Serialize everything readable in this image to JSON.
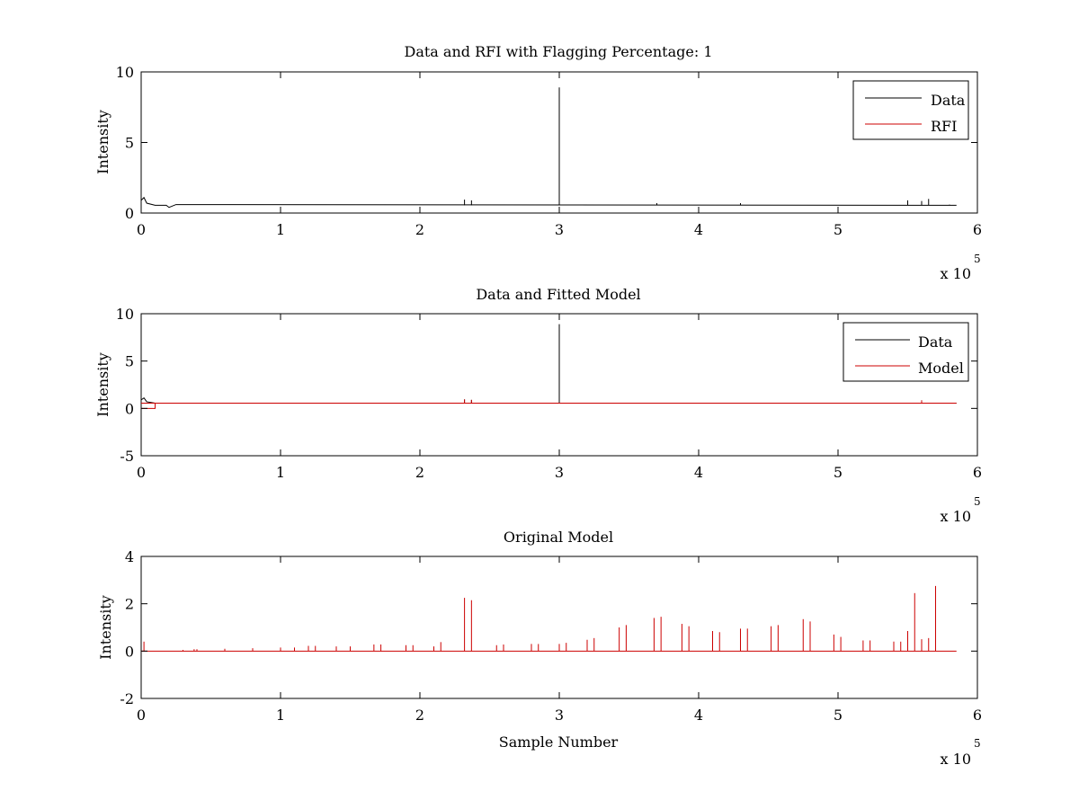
{
  "chart_data": [
    {
      "type": "line",
      "title": "Data and RFI with Flagging Percentage: 1",
      "xlabel": "",
      "ylabel": "Intensity",
      "xlim": [
        0,
        6
      ],
      "ylim": [
        0,
        10
      ],
      "xticks": [
        "0",
        "1",
        "2",
        "3",
        "4",
        "5",
        "6"
      ],
      "yticks": [
        "0",
        "5",
        "10"
      ],
      "x_multiplier_base": "x 10",
      "x_multiplier_exp": "5",
      "legend_position": "top-right",
      "baseline": 0.55,
      "series": [
        {
          "name": "Data",
          "color": "#000000",
          "values": [
            [
              0,
              0.9
            ],
            [
              0.02,
              1.1
            ],
            [
              0.04,
              0.7
            ],
            [
              0.1,
              0.55
            ],
            [
              0.2,
              0.4
            ],
            [
              0.25,
              0.6
            ],
            [
              2.32,
              0.95
            ],
            [
              2.37,
              0.9
            ],
            [
              3.0,
              8.9
            ],
            [
              3.7,
              0.7
            ],
            [
              4.3,
              0.7
            ],
            [
              5.5,
              0.9
            ],
            [
              5.6,
              0.85
            ],
            [
              5.65,
              1.0
            ],
            [
              5.8,
              0.6
            ]
          ]
        },
        {
          "name": "RFI",
          "color": "#cc0000",
          "values": []
        }
      ]
    },
    {
      "type": "line",
      "title": "Data and Fitted Model",
      "xlabel": "",
      "ylabel": "Intensity",
      "xlim": [
        0,
        6
      ],
      "ylim": [
        -5,
        10
      ],
      "xticks": [
        "0",
        "1",
        "2",
        "3",
        "4",
        "5",
        "6"
      ],
      "yticks": [
        "-5",
        "0",
        "5",
        "10"
      ],
      "x_multiplier_base": "x 10",
      "x_multiplier_exp": "5",
      "legend_position": "top-right",
      "baseline": 0.55,
      "series": [
        {
          "name": "Data",
          "color": "#000000",
          "values": [
            [
              0,
              0.9
            ],
            [
              0.02,
              1.1
            ],
            [
              0.04,
              0.7
            ],
            [
              0.1,
              0.55
            ],
            [
              0.25,
              0.6
            ],
            [
              2.32,
              0.95
            ],
            [
              2.37,
              0.9
            ],
            [
              3.0,
              8.9
            ],
            [
              5.6,
              0.85
            ],
            [
              5.8,
              0.6
            ]
          ]
        },
        {
          "name": "Model",
          "color": "#cc0000",
          "values": [
            [
              0,
              0.0
            ],
            [
              0.1,
              0.0
            ],
            [
              0.1,
              0.55
            ],
            [
              2.32,
              0.95
            ],
            [
              2.37,
              0.9
            ],
            [
              5.6,
              0.85
            ],
            [
              5.8,
              0.55
            ]
          ]
        }
      ]
    },
    {
      "type": "line",
      "title": "Original Model",
      "xlabel": "Sample Number",
      "ylabel": "Intensity",
      "xlim": [
        0,
        6
      ],
      "ylim": [
        -2,
        4
      ],
      "xticks": [
        "0",
        "1",
        "2",
        "3",
        "4",
        "5",
        "6"
      ],
      "yticks": [
        "-2",
        "0",
        "2",
        "4"
      ],
      "x_multiplier_base": "x 10",
      "x_multiplier_exp": "5",
      "baseline": 0,
      "series": [
        {
          "color": "#cc0000",
          "values": [
            [
              0.02,
              0.4
            ],
            [
              0.3,
              0.05
            ],
            [
              0.38,
              0.08
            ],
            [
              0.4,
              0.08
            ],
            [
              0.6,
              0.1
            ],
            [
              0.8,
              0.12
            ],
            [
              1.0,
              0.15
            ],
            [
              1.1,
              0.15
            ],
            [
              1.2,
              0.22
            ],
            [
              1.25,
              0.22
            ],
            [
              1.4,
              0.2
            ],
            [
              1.5,
              0.2
            ],
            [
              1.67,
              0.28
            ],
            [
              1.72,
              0.28
            ],
            [
              1.9,
              0.25
            ],
            [
              1.95,
              0.25
            ],
            [
              2.1,
              0.2
            ],
            [
              2.15,
              0.38
            ],
            [
              2.32,
              2.25
            ],
            [
              2.37,
              2.15
            ],
            [
              2.55,
              0.25
            ],
            [
              2.6,
              0.28
            ],
            [
              2.8,
              0.3
            ],
            [
              2.85,
              0.3
            ],
            [
              3.0,
              0.3
            ],
            [
              3.05,
              0.35
            ],
            [
              3.2,
              0.48
            ],
            [
              3.25,
              0.55
            ],
            [
              3.43,
              1.0
            ],
            [
              3.48,
              1.1
            ],
            [
              3.68,
              1.4
            ],
            [
              3.73,
              1.45
            ],
            [
              3.88,
              1.15
            ],
            [
              3.93,
              1.05
            ],
            [
              4.1,
              0.85
            ],
            [
              4.15,
              0.8
            ],
            [
              4.3,
              0.95
            ],
            [
              4.35,
              0.95
            ],
            [
              4.52,
              1.05
            ],
            [
              4.57,
              1.1
            ],
            [
              4.75,
              1.35
            ],
            [
              4.8,
              1.25
            ],
            [
              4.97,
              0.7
            ],
            [
              5.02,
              0.6
            ],
            [
              5.18,
              0.45
            ],
            [
              5.23,
              0.45
            ],
            [
              5.4,
              0.4
            ],
            [
              5.45,
              0.4
            ],
            [
              5.5,
              0.85
            ],
            [
              5.55,
              2.45
            ],
            [
              5.6,
              0.5
            ],
            [
              5.65,
              0.55
            ],
            [
              5.7,
              2.75
            ]
          ]
        }
      ]
    }
  ]
}
